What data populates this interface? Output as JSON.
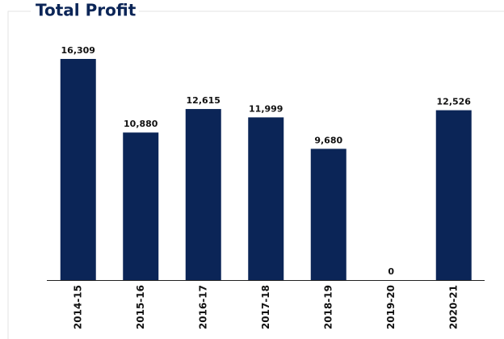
{
  "chart_data": {
    "type": "bar",
    "title": "Total Profit",
    "categories": [
      "2014-15",
      "2015-16",
      "2016-17",
      "2017-18",
      "2018-19",
      "2019-20",
      "2020-21"
    ],
    "values": [
      16309,
      10880,
      12615,
      11999,
      9680,
      0,
      12526
    ],
    "value_labels": [
      "16,309",
      "10,880",
      "12,615",
      "11,999",
      "9,680",
      "0",
      "12,526"
    ],
    "color": "#0b2557"
  }
}
